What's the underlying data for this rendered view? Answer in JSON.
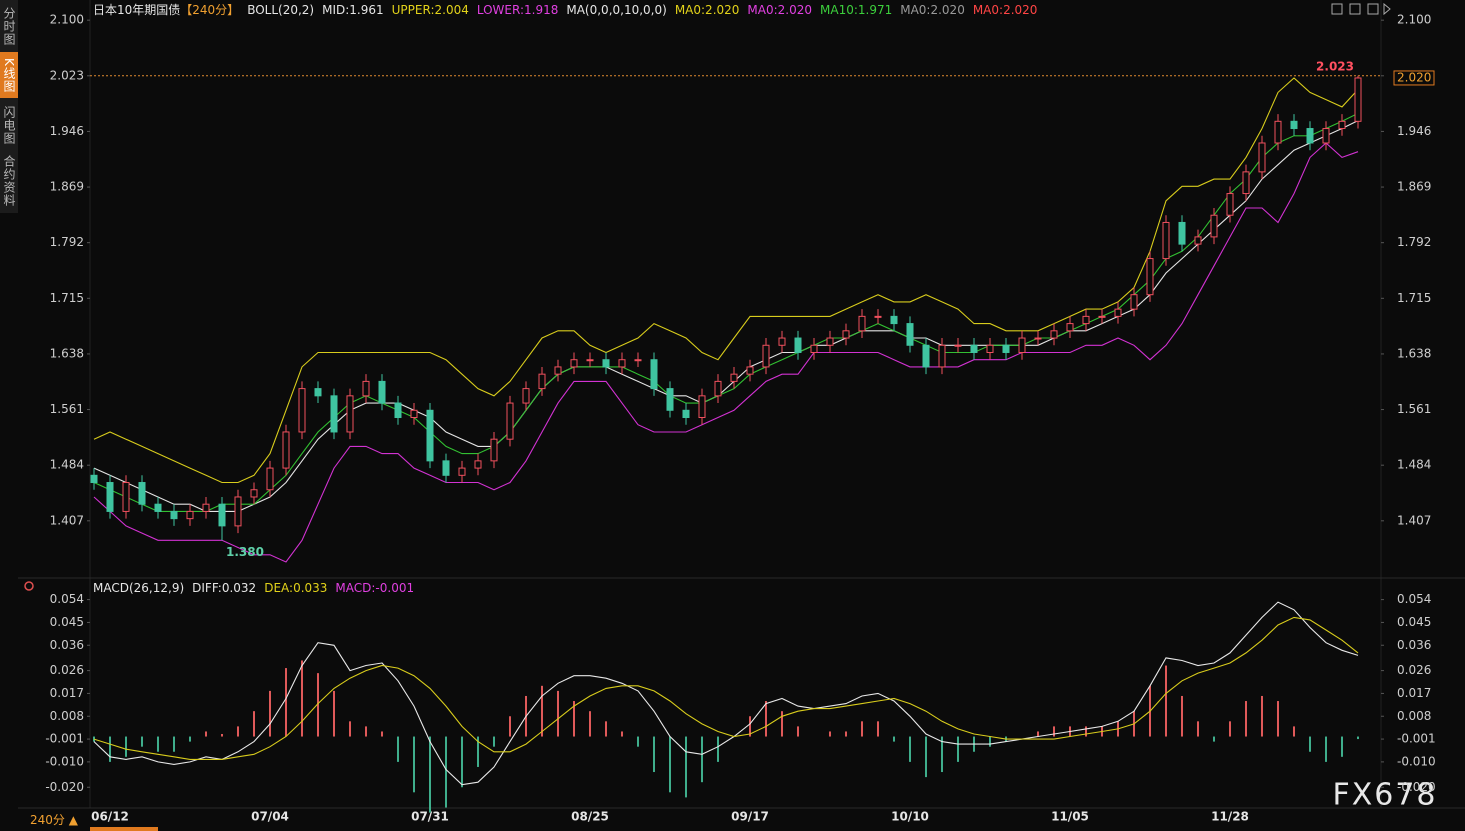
{
  "ui": {
    "sidebar": [
      "分时图",
      "K线图",
      "闪电图",
      "合约资料"
    ],
    "period_button": "240分 ▲",
    "watermark": "FX678"
  },
  "chart_data": [
    {
      "type": "candlestick",
      "title": "日本10年期国债",
      "period": "【240分】",
      "legend": [
        {
          "text": "BOLL(20,2)",
          "color": "#e6e6e6"
        },
        {
          "text": "MID:1.961",
          "color": "#e6e6e6"
        },
        {
          "text": "UPPER:2.004",
          "color": "#e2d21a"
        },
        {
          "text": "LOWER:1.918",
          "color": "#e040e0"
        },
        {
          "text": "MA(0,0,0,10,0,0)",
          "color": "#e6e6e6"
        },
        {
          "text": "MA0:2.020",
          "color": "#e2d21a"
        },
        {
          "text": "MA0:2.020",
          "color": "#e040e0"
        },
        {
          "text": "MA10:1.971",
          "color": "#3ccf3c"
        },
        {
          "text": "MA0:2.020",
          "color": "#9a9a9a"
        },
        {
          "text": "MA0:2.020",
          "color": "#ff4545"
        }
      ],
      "categories": [
        null,
        "06/12",
        null,
        null,
        null,
        null,
        null,
        null,
        null,
        null,
        null,
        "07/04",
        null,
        null,
        null,
        null,
        null,
        null,
        null,
        null,
        null,
        "07/31",
        null,
        null,
        null,
        null,
        null,
        null,
        null,
        null,
        null,
        "08/25",
        null,
        null,
        null,
        null,
        null,
        null,
        null,
        null,
        null,
        "09/17",
        null,
        null,
        null,
        null,
        null,
        null,
        null,
        null,
        null,
        "10/10",
        null,
        null,
        null,
        null,
        null,
        null,
        null,
        null,
        null,
        "11/05",
        null,
        null,
        null,
        null,
        null,
        null,
        null,
        null,
        null,
        "11/28",
        null,
        null,
        null,
        null,
        null,
        null,
        null,
        null
      ],
      "open": [
        1.47,
        1.46,
        1.42,
        1.46,
        1.43,
        1.42,
        1.41,
        1.42,
        1.43,
        1.4,
        1.44,
        1.45,
        1.48,
        1.53,
        1.59,
        1.58,
        1.53,
        1.58,
        1.6,
        1.57,
        1.55,
        1.56,
        1.49,
        1.47,
        1.48,
        1.49,
        1.52,
        1.57,
        1.59,
        1.61,
        1.62,
        1.63,
        1.63,
        1.62,
        1.63,
        1.63,
        1.59,
        1.56,
        1.55,
        1.58,
        1.6,
        1.61,
        1.62,
        1.65,
        1.66,
        1.64,
        1.65,
        1.66,
        1.67,
        1.69,
        1.69,
        1.68,
        1.65,
        1.62,
        1.65,
        1.65,
        1.64,
        1.65,
        1.64,
        1.66,
        1.66,
        1.67,
        1.68,
        1.69,
        1.69,
        1.7,
        1.72,
        1.77,
        1.82,
        1.79,
        1.8,
        1.83,
        1.86,
        1.89,
        1.93,
        1.96,
        1.95,
        1.93,
        1.95,
        1.96
      ],
      "high": [
        1.48,
        1.47,
        1.47,
        1.47,
        1.44,
        1.43,
        1.43,
        1.44,
        1.44,
        1.45,
        1.46,
        1.49,
        1.54,
        1.6,
        1.6,
        1.59,
        1.59,
        1.61,
        1.61,
        1.58,
        1.57,
        1.57,
        1.5,
        1.49,
        1.5,
        1.53,
        1.58,
        1.6,
        1.62,
        1.63,
        1.64,
        1.64,
        1.64,
        1.64,
        1.64,
        1.64,
        1.6,
        1.57,
        1.59,
        1.61,
        1.62,
        1.63,
        1.66,
        1.67,
        1.67,
        1.66,
        1.67,
        1.68,
        1.7,
        1.7,
        1.7,
        1.69,
        1.66,
        1.66,
        1.66,
        1.66,
        1.66,
        1.66,
        1.67,
        1.67,
        1.68,
        1.69,
        1.7,
        1.7,
        1.71,
        1.73,
        1.78,
        1.83,
        1.83,
        1.81,
        1.84,
        1.87,
        1.9,
        1.94,
        1.97,
        1.97,
        1.96,
        1.96,
        1.97,
        2.023
      ],
      "low": [
        1.45,
        1.41,
        1.41,
        1.42,
        1.41,
        1.4,
        1.4,
        1.41,
        1.38,
        1.39,
        1.43,
        1.44,
        1.47,
        1.52,
        1.57,
        1.52,
        1.52,
        1.57,
        1.56,
        1.54,
        1.54,
        1.48,
        1.46,
        1.46,
        1.47,
        1.48,
        1.51,
        1.56,
        1.58,
        1.6,
        1.61,
        1.62,
        1.61,
        1.61,
        1.62,
        1.58,
        1.55,
        1.54,
        1.54,
        1.57,
        1.59,
        1.6,
        1.61,
        1.64,
        1.63,
        1.63,
        1.64,
        1.65,
        1.66,
        1.68,
        1.67,
        1.64,
        1.61,
        1.61,
        1.64,
        1.63,
        1.63,
        1.63,
        1.63,
        1.65,
        1.65,
        1.66,
        1.67,
        1.68,
        1.68,
        1.69,
        1.71,
        1.76,
        1.78,
        1.78,
        1.79,
        1.82,
        1.85,
        1.88,
        1.92,
        1.94,
        1.92,
        1.92,
        1.94,
        1.95
      ],
      "close": [
        1.46,
        1.42,
        1.46,
        1.43,
        1.42,
        1.41,
        1.42,
        1.43,
        1.4,
        1.44,
        1.45,
        1.48,
        1.53,
        1.59,
        1.58,
        1.53,
        1.58,
        1.6,
        1.57,
        1.55,
        1.56,
        1.49,
        1.47,
        1.48,
        1.49,
        1.52,
        1.57,
        1.59,
        1.61,
        1.62,
        1.63,
        1.63,
        1.62,
        1.63,
        1.63,
        1.59,
        1.56,
        1.55,
        1.58,
        1.6,
        1.61,
        1.62,
        1.65,
        1.66,
        1.64,
        1.65,
        1.66,
        1.67,
        1.69,
        1.69,
        1.68,
        1.65,
        1.62,
        1.65,
        1.65,
        1.64,
        1.65,
        1.64,
        1.66,
        1.66,
        1.67,
        1.68,
        1.69,
        1.69,
        1.7,
        1.72,
        1.77,
        1.82,
        1.79,
        1.8,
        1.83,
        1.86,
        1.89,
        1.93,
        1.96,
        1.95,
        1.93,
        1.95,
        1.96,
        2.02
      ],
      "up_color": "#f0505e",
      "down_color": "#3fc4a0",
      "series": [
        {
          "color": "#d8cc1c",
          "values": [
            1.52,
            1.53,
            1.52,
            1.51,
            1.5,
            1.49,
            1.48,
            1.47,
            1.46,
            1.46,
            1.47,
            1.5,
            1.56,
            1.62,
            1.64,
            1.64,
            1.64,
            1.64,
            1.64,
            1.64,
            1.64,
            1.64,
            1.63,
            1.61,
            1.59,
            1.58,
            1.6,
            1.63,
            1.66,
            1.67,
            1.67,
            1.65,
            1.64,
            1.65,
            1.66,
            1.68,
            1.67,
            1.66,
            1.64,
            1.63,
            1.66,
            1.69,
            1.69,
            1.69,
            1.69,
            1.69,
            1.69,
            1.7,
            1.71,
            1.72,
            1.71,
            1.71,
            1.72,
            1.71,
            1.7,
            1.68,
            1.68,
            1.67,
            1.67,
            1.67,
            1.68,
            1.69,
            1.7,
            1.7,
            1.71,
            1.73,
            1.78,
            1.85,
            1.87,
            1.87,
            1.88,
            1.88,
            1.91,
            1.95,
            2.0,
            2.02,
            2.0,
            1.99,
            1.98,
            2.004
          ]
        },
        {
          "color": "#e4e4e4",
          "values": [
            1.48,
            1.47,
            1.46,
            1.45,
            1.44,
            1.43,
            1.43,
            1.42,
            1.42,
            1.42,
            1.43,
            1.44,
            1.46,
            1.49,
            1.52,
            1.54,
            1.56,
            1.57,
            1.57,
            1.57,
            1.56,
            1.55,
            1.53,
            1.52,
            1.51,
            1.51,
            1.53,
            1.56,
            1.59,
            1.61,
            1.62,
            1.62,
            1.62,
            1.61,
            1.6,
            1.59,
            1.58,
            1.58,
            1.57,
            1.58,
            1.6,
            1.62,
            1.63,
            1.64,
            1.64,
            1.65,
            1.65,
            1.66,
            1.67,
            1.67,
            1.67,
            1.66,
            1.66,
            1.65,
            1.65,
            1.65,
            1.65,
            1.65,
            1.65,
            1.65,
            1.66,
            1.67,
            1.67,
            1.68,
            1.69,
            1.7,
            1.72,
            1.75,
            1.77,
            1.79,
            1.81,
            1.83,
            1.85,
            1.88,
            1.9,
            1.92,
            1.93,
            1.94,
            1.95,
            1.961
          ]
        },
        {
          "color": "#d232d2",
          "values": [
            1.44,
            1.42,
            1.4,
            1.39,
            1.38,
            1.38,
            1.38,
            1.38,
            1.38,
            1.37,
            1.36,
            1.36,
            1.35,
            1.38,
            1.43,
            1.48,
            1.51,
            1.51,
            1.5,
            1.5,
            1.48,
            1.47,
            1.46,
            1.46,
            1.46,
            1.45,
            1.46,
            1.49,
            1.53,
            1.57,
            1.6,
            1.6,
            1.6,
            1.57,
            1.54,
            1.53,
            1.53,
            1.53,
            1.54,
            1.55,
            1.56,
            1.58,
            1.6,
            1.61,
            1.61,
            1.64,
            1.64,
            1.64,
            1.64,
            1.64,
            1.63,
            1.62,
            1.62,
            1.62,
            1.62,
            1.63,
            1.63,
            1.63,
            1.64,
            1.64,
            1.64,
            1.64,
            1.65,
            1.65,
            1.66,
            1.65,
            1.63,
            1.65,
            1.68,
            1.72,
            1.76,
            1.8,
            1.84,
            1.84,
            1.82,
            1.86,
            1.91,
            1.93,
            1.91,
            1.918
          ]
        },
        {
          "color": "#32c032",
          "values": [
            1.46,
            1.45,
            1.44,
            1.43,
            1.42,
            1.42,
            1.42,
            1.42,
            1.43,
            1.43,
            1.43,
            1.45,
            1.47,
            1.5,
            1.53,
            1.55,
            1.57,
            1.58,
            1.57,
            1.56,
            1.55,
            1.53,
            1.51,
            1.5,
            1.5,
            1.51,
            1.53,
            1.56,
            1.59,
            1.61,
            1.62,
            1.62,
            1.62,
            1.62,
            1.61,
            1.6,
            1.58,
            1.57,
            1.57,
            1.58,
            1.59,
            1.61,
            1.62,
            1.63,
            1.64,
            1.65,
            1.66,
            1.66,
            1.67,
            1.68,
            1.67,
            1.66,
            1.65,
            1.64,
            1.64,
            1.64,
            1.65,
            1.65,
            1.65,
            1.66,
            1.66,
            1.67,
            1.68,
            1.69,
            1.7,
            1.72,
            1.74,
            1.77,
            1.78,
            1.8,
            1.83,
            1.86,
            1.88,
            1.91,
            1.93,
            1.94,
            1.94,
            1.95,
            1.96,
            1.971
          ]
        }
      ],
      "ylim": [
        1.332,
        2.121
      ],
      "yticks": [
        1.407,
        1.484,
        1.561,
        1.638,
        1.715,
        1.792,
        1.869,
        1.946,
        2.023,
        {
          "value": 2.1,
          "label": "2.100"
        }
      ],
      "high_label": 2.023,
      "low_label": {
        "value": 1.38,
        "label": "1.380"
      },
      "last_label": {
        "value": 2.02,
        "label": "2.020"
      }
    },
    {
      "type": "macd",
      "legend": [
        {
          "text": "MACD(26,12,9)",
          "color": "#e6e6e6"
        },
        {
          "text": "DIFF:0.032",
          "color": "#e6e6e6"
        },
        {
          "text": "DEA:0.033",
          "color": "#e2d21a"
        },
        {
          "text": "MACD:-0.001",
          "color": "#e040e0"
        }
      ],
      "series": [
        {
          "color": "#e8e8e8",
          "values": [
            -0.002,
            -0.008,
            -0.009,
            -0.008,
            -0.01,
            -0.011,
            -0.01,
            -0.008,
            -0.009,
            -0.006,
            -0.002,
            0.005,
            0.015,
            0.028,
            0.037,
            0.036,
            0.026,
            0.028,
            0.029,
            0.022,
            0.012,
            -0.002,
            -0.013,
            -0.019,
            -0.018,
            -0.012,
            -0.002,
            0.008,
            0.016,
            0.021,
            0.024,
            0.024,
            0.023,
            0.021,
            0.018,
            0.01,
            0.0,
            -0.006,
            -0.007,
            -0.004,
            0.0,
            0.005,
            0.013,
            0.015,
            0.012,
            0.011,
            0.012,
            0.013,
            0.016,
            0.017,
            0.014,
            0.008,
            0.001,
            -0.002,
            -0.003,
            -0.003,
            -0.003,
            -0.002,
            -0.001,
            0.0,
            0.001,
            0.002,
            0.003,
            0.004,
            0.006,
            0.01,
            0.02,
            0.031,
            0.03,
            0.028,
            0.029,
            0.033,
            0.04,
            0.047,
            0.053,
            0.05,
            0.043,
            0.037,
            0.034,
            0.032
          ]
        },
        {
          "color": "#d8cc1c",
          "values": [
            -0.001,
            -0.003,
            -0.005,
            -0.006,
            -0.007,
            -0.008,
            -0.009,
            -0.009,
            -0.009,
            -0.008,
            -0.007,
            -0.004,
            0.0,
            0.006,
            0.013,
            0.019,
            0.023,
            0.026,
            0.028,
            0.027,
            0.024,
            0.019,
            0.012,
            0.004,
            -0.002,
            -0.006,
            -0.006,
            -0.003,
            0.002,
            0.007,
            0.012,
            0.016,
            0.019,
            0.02,
            0.02,
            0.018,
            0.014,
            0.009,
            0.005,
            0.002,
            0.0,
            0.001,
            0.004,
            0.008,
            0.01,
            0.011,
            0.011,
            0.012,
            0.013,
            0.014,
            0.015,
            0.013,
            0.01,
            0.006,
            0.003,
            0.001,
            0.0,
            -0.001,
            -0.001,
            -0.001,
            -0.001,
            0.0,
            0.001,
            0.002,
            0.003,
            0.005,
            0.01,
            0.017,
            0.022,
            0.025,
            0.027,
            0.029,
            0.033,
            0.038,
            0.044,
            0.047,
            0.046,
            0.042,
            0.038,
            0.033
          ]
        }
      ],
      "histogram": {
        "up_color": "#e05a5a",
        "down_color": "#3fae8c",
        "values": [
          -0.002,
          -0.01,
          -0.008,
          -0.004,
          -0.006,
          -0.006,
          -0.002,
          0.002,
          0.001,
          0.004,
          0.01,
          0.018,
          0.027,
          0.03,
          0.025,
          0.018,
          0.006,
          0.004,
          0.002,
          -0.01,
          -0.022,
          -0.03,
          -0.028,
          -0.02,
          -0.012,
          -0.004,
          0.008,
          0.016,
          0.02,
          0.018,
          0.014,
          0.01,
          0.006,
          0.002,
          -0.004,
          -0.014,
          -0.022,
          -0.024,
          -0.018,
          -0.01,
          0.0,
          0.008,
          0.014,
          0.01,
          0.004,
          0.0,
          0.002,
          0.002,
          0.006,
          0.006,
          -0.002,
          -0.01,
          -0.016,
          -0.014,
          -0.01,
          -0.006,
          -0.004,
          -0.002,
          0.0,
          0.002,
          0.004,
          0.004,
          0.004,
          0.004,
          0.006,
          0.01,
          0.02,
          0.028,
          0.016,
          0.006,
          -0.002,
          0.006,
          0.014,
          0.016,
          0.014,
          0.004,
          -0.006,
          -0.01,
          -0.008,
          -0.001
        ]
      },
      "ylim": [
        -0.027,
        0.057
      ],
      "yticks": [
        0.054,
        0.045,
        0.036,
        0.026,
        0.017,
        0.008,
        -0.001,
        {
          "value": -0.01,
          "label": "-0.010"
        },
        {
          "value": -0.02,
          "label": "-0.020"
        }
      ]
    }
  ]
}
